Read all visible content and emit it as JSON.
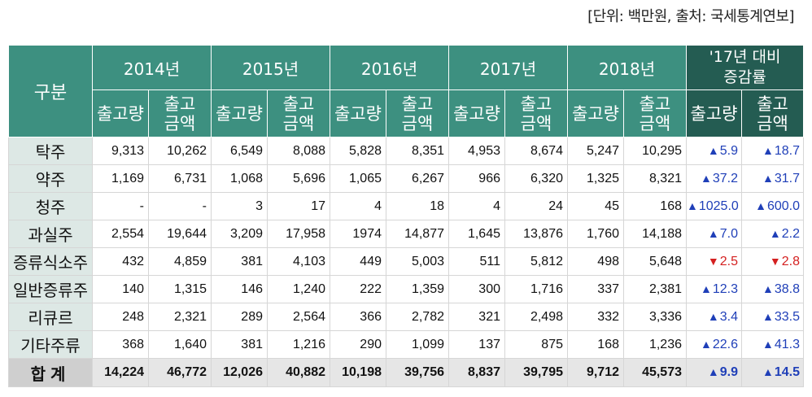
{
  "source_note": "[단위: 백만원, 출처: 국세통계연보]",
  "header": {
    "corner": "구분",
    "years": [
      "2014년",
      "2015년",
      "2016년",
      "2017년",
      "2018년"
    ],
    "change_title_line1": "'17년 대비",
    "change_title_line2": "증감률",
    "qty_label": "출고량",
    "amt_label_line1": "출고",
    "amt_label_line2": "금액"
  },
  "rows": [
    {
      "name": "탁주",
      "v": [
        "9,313",
        "10,262",
        "6,549",
        "8,088",
        "5,828",
        "8,351",
        "4,953",
        "8,674",
        "5,247",
        "10,295"
      ],
      "c1": "5.9",
      "d1": "up",
      "c2": "18.7",
      "d2": "up"
    },
    {
      "name": "약주",
      "v": [
        "1,169",
        "6,731",
        "1,068",
        "5,696",
        "1,065",
        "6,267",
        "966",
        "6,320",
        "1,325",
        "8,321"
      ],
      "c1": "37.2",
      "d1": "up",
      "c2": "31.7",
      "d2": "up"
    },
    {
      "name": "청주",
      "v": [
        "-",
        "-",
        "3",
        "17",
        "4",
        "18",
        "4",
        "24",
        "45",
        "168"
      ],
      "c1": "1025.0",
      "d1": "up",
      "c2": "600.0",
      "d2": "up"
    },
    {
      "name": "과실주",
      "v": [
        "2,554",
        "19,644",
        "3,209",
        "17,958",
        "1974",
        "14,877",
        "1,645",
        "13,876",
        "1,760",
        "14,188"
      ],
      "c1": "7.0",
      "d1": "up",
      "c2": "2.2",
      "d2": "up"
    },
    {
      "name": "증류식소주",
      "v": [
        "432",
        "4,859",
        "381",
        "4,103",
        "449",
        "5,003",
        "511",
        "5,812",
        "498",
        "5,648"
      ],
      "c1": "2.5",
      "d1": "down",
      "c2": "2.8",
      "d2": "down"
    },
    {
      "name": "일반증류주",
      "v": [
        "140",
        "1,315",
        "146",
        "1,240",
        "222",
        "1,359",
        "300",
        "1,716",
        "337",
        "2,381"
      ],
      "c1": "12.3",
      "d1": "up",
      "c2": "38.8",
      "d2": "up"
    },
    {
      "name": "리큐르",
      "v": [
        "248",
        "2,321",
        "289",
        "2,564",
        "366",
        "2,782",
        "321",
        "2,498",
        "332",
        "3,336"
      ],
      "c1": "3.4",
      "d1": "up",
      "c2": "33.5",
      "d2": "up"
    },
    {
      "name": "기타주류",
      "v": [
        "368",
        "1,640",
        "381",
        "1,216",
        "290",
        "1,099",
        "137",
        "875",
        "168",
        "1,236"
      ],
      "c1": "22.6",
      "d1": "up",
      "c2": "41.3",
      "d2": "up"
    }
  ],
  "total": {
    "name": "합계",
    "v": [
      "14,224",
      "46,772",
      "12,026",
      "40,882",
      "10,198",
      "39,756",
      "8,837",
      "39,795",
      "9,712",
      "45,573"
    ],
    "c1": "9.9",
    "d1": "up",
    "c2": "14.5",
    "d2": "up"
  },
  "arrows": {
    "up": "▲",
    "down": "▼"
  },
  "colors": {
    "header": "#3d9080",
    "header_dark": "#245c52",
    "row_label": "#dde8e5",
    "up": "#1f3fb8",
    "down": "#d42020"
  }
}
